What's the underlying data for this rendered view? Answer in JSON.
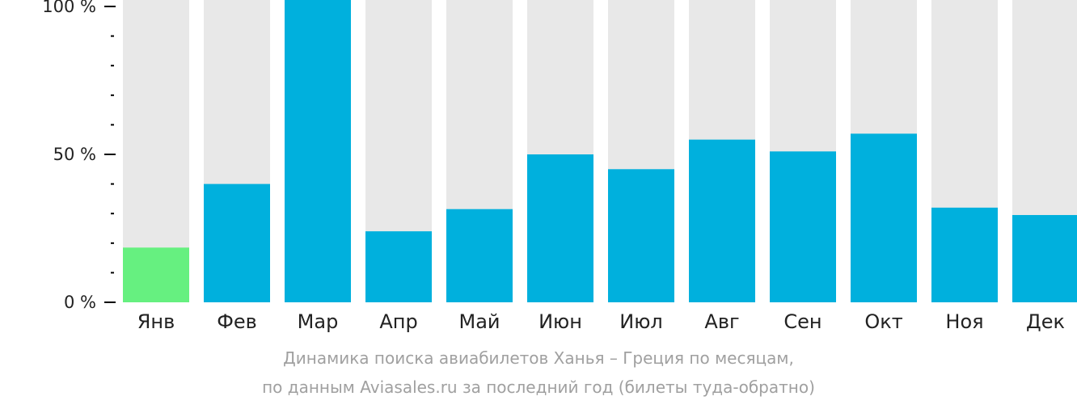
{
  "chart_data": {
    "type": "bar",
    "categories": [
      "Янв",
      "Фев",
      "Мар",
      "Апр",
      "Май",
      "Июн",
      "Июл",
      "Авг",
      "Сен",
      "Окт",
      "Ноя",
      "Дек"
    ],
    "values": [
      18.5,
      40,
      100,
      24,
      31.5,
      50,
      45,
      55,
      51,
      57,
      32,
      29.5
    ],
    "highlight_index": 0,
    "ylim": [
      0,
      100
    ],
    "y_ticks": [
      {
        "value": 0,
        "label": "0 %"
      },
      {
        "value": 50,
        "label": "50 %"
      },
      {
        "value": 100,
        "label": "100 %"
      }
    ],
    "y_minor_tick_step": 10,
    "colors": {
      "bar": "#00b0dd",
      "highlight_bar": "#66f080",
      "bar_background": "#e8e8e8",
      "axis": "#000000",
      "tick_text": "#222222",
      "caption_text": "#a0a0a0"
    }
  },
  "caption": {
    "line1": "Динамика поиска авиабилетов Ханья – Греция по месяцам,",
    "line2": "по данным Aviasales.ru за последний год (билеты туда-обратно)"
  }
}
